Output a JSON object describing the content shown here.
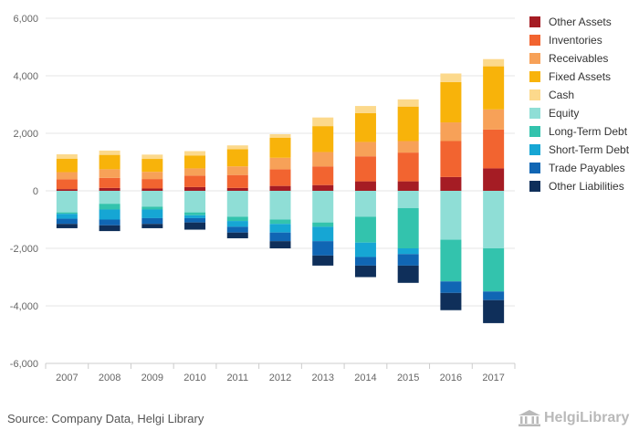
{
  "chart_data": {
    "type": "bar",
    "stacked": true,
    "categories": [
      "2007",
      "2008",
      "2009",
      "2010",
      "2011",
      "2012",
      "2013",
      "2014",
      "2015",
      "2016",
      "2017"
    ],
    "ylim": [
      -6000,
      6000
    ],
    "yticks": [
      -6000,
      -4000,
      -2000,
      0,
      2000,
      4000,
      6000
    ],
    "ytick_labels": [
      "-6,000",
      "-4,000",
      "-2,000",
      "0",
      "2,000",
      "4,000",
      "6,000"
    ],
    "grid": true,
    "legend_position": "right",
    "series": [
      {
        "name": "Other Assets",
        "color": "#a51c24",
        "values": [
          60,
          100,
          80,
          130,
          100,
          170,
          200,
          330,
          330,
          480,
          780
        ]
      },
      {
        "name": "Inventories",
        "color": "#f26430",
        "values": [
          340,
          350,
          330,
          400,
          450,
          580,
          650,
          870,
          1000,
          1250,
          1350
        ]
      },
      {
        "name": "Receivables",
        "color": "#f7a158",
        "values": [
          250,
          300,
          250,
          250,
          300,
          400,
          500,
          500,
          400,
          650,
          700
        ]
      },
      {
        "name": "Fixed Assets",
        "color": "#f8b30a",
        "values": [
          470,
          500,
          450,
          450,
          600,
          700,
          900,
          1000,
          1200,
          1400,
          1500
        ]
      },
      {
        "name": "Cash",
        "color": "#fcd98c",
        "values": [
          150,
          150,
          150,
          150,
          130,
          120,
          300,
          250,
          250,
          300,
          250
        ]
      },
      {
        "name": "Equity",
        "color": "#8fded6",
        "values": [
          -750,
          -450,
          -550,
          -750,
          -900,
          -1000,
          -1100,
          -900,
          -600,
          -1700,
          -2000
        ]
      },
      {
        "name": "Long-Term Debt",
        "color": "#33c3ad",
        "values": [
          -50,
          -200,
          -100,
          -100,
          -150,
          -150,
          -150,
          -900,
          -1400,
          -1450,
          -1500
        ]
      },
      {
        "name": "Short-Term Debt",
        "color": "#16a6d4",
        "values": [
          -170,
          -350,
          -300,
          -100,
          -200,
          -300,
          -500,
          -500,
          -200,
          0,
          0
        ]
      },
      {
        "name": "Trade Payables",
        "color": "#1066b4",
        "values": [
          -180,
          -200,
          -200,
          -150,
          -200,
          -300,
          -500,
          -300,
          -400,
          -400,
          -300
        ]
      },
      {
        "name": "Other Liabilities",
        "color": "#0f2f5a",
        "values": [
          -150,
          -200,
          -150,
          -250,
          -200,
          -250,
          -350,
          -400,
          -600,
          -600,
          -800
        ]
      }
    ]
  },
  "source_text": "Source: Company Data, Helgi Library",
  "logo_text": "HelgiLibrary"
}
